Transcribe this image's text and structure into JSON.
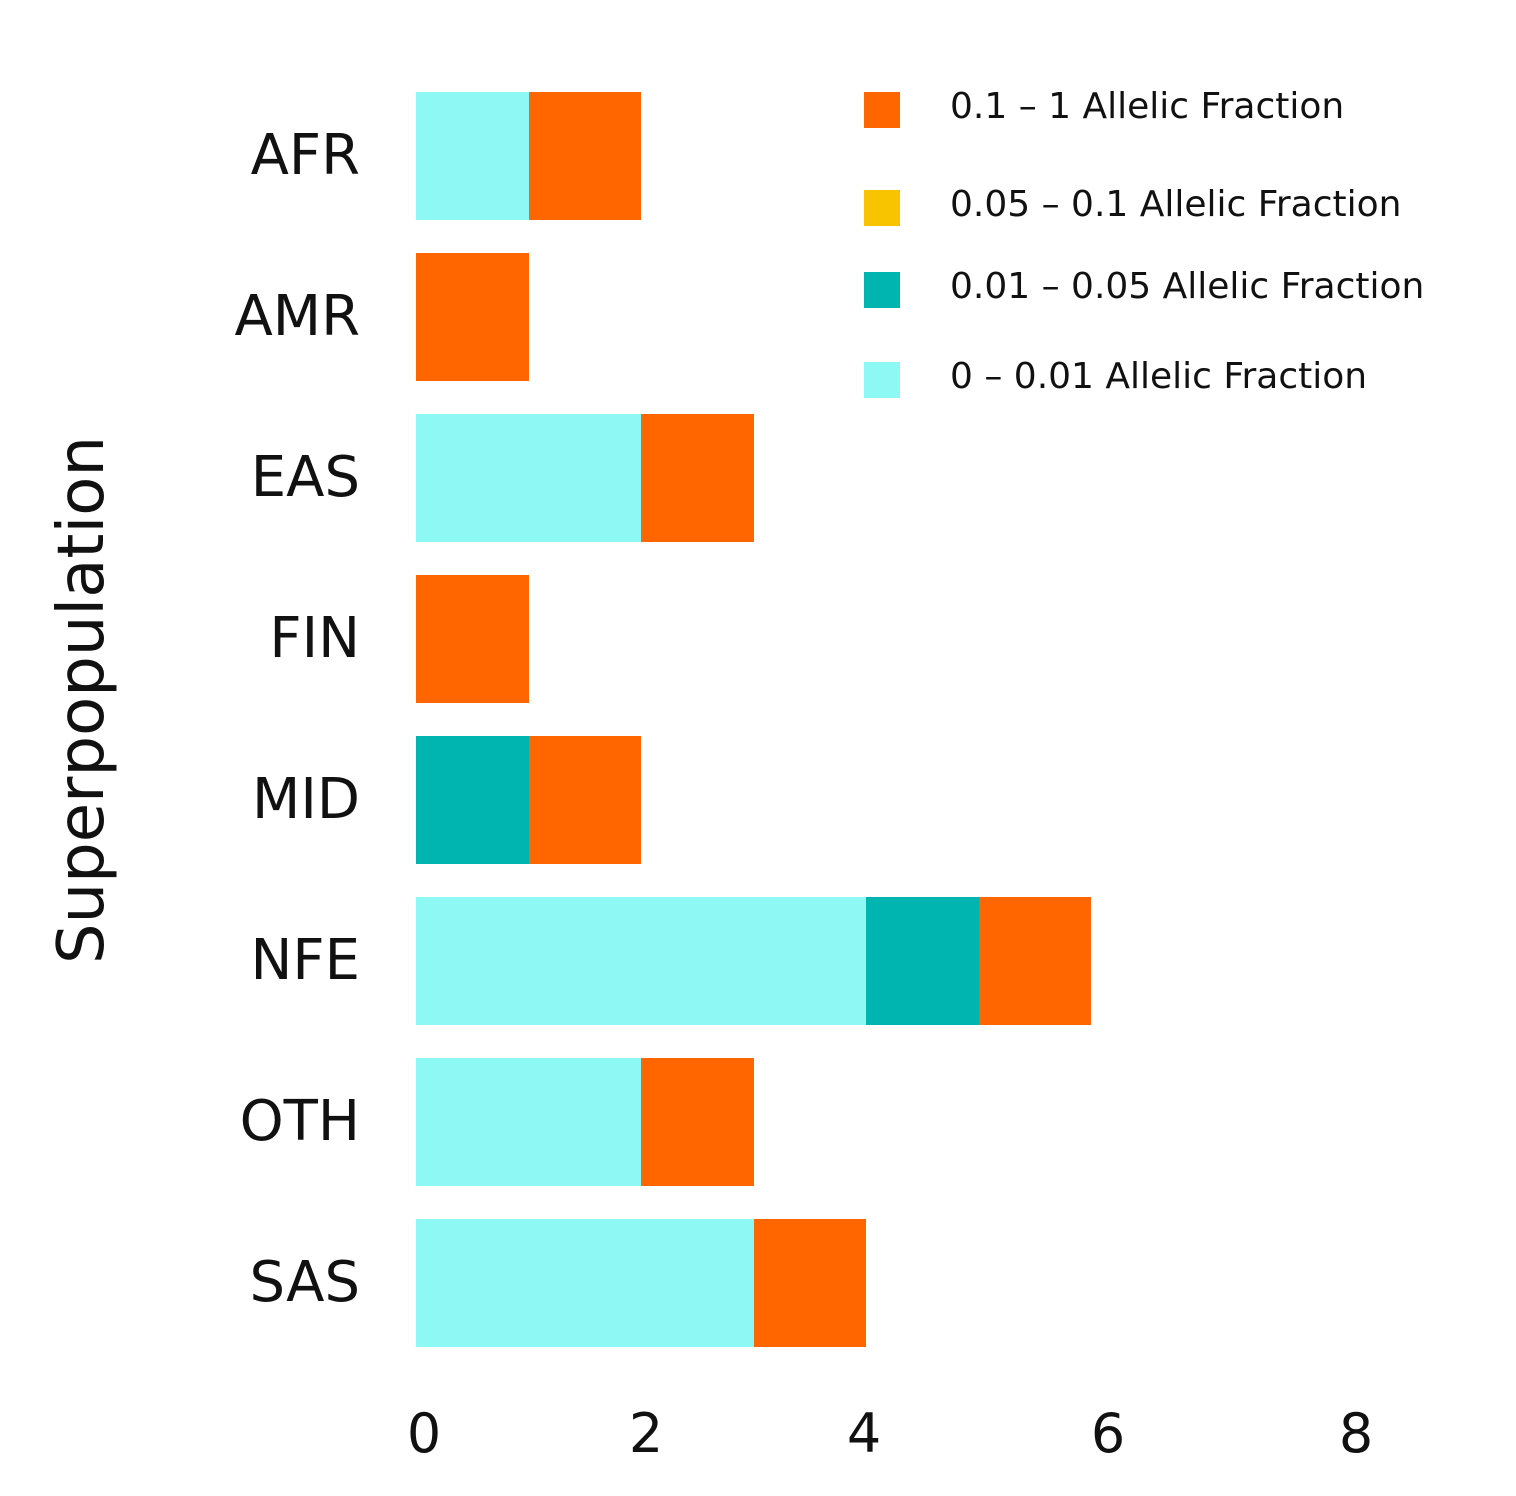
{
  "chart_data": {
    "type": "bar",
    "orientation": "horizontal",
    "stacked": true,
    "title": "",
    "xlabel": "",
    "ylabel": "Superpopulation",
    "categories": [
      "AFR",
      "AMR",
      "EAS",
      "FIN",
      "MID",
      "NFE",
      "OTH",
      "SAS"
    ],
    "series": [
      {
        "name": "0 – 0.01 Allelic Fraction",
        "color": "#8ef8f4",
        "values": [
          1,
          0,
          2,
          0,
          0,
          4,
          2,
          3
        ]
      },
      {
        "name": "0.01 – 0.05 Allelic Fraction",
        "color": "#00b4b0",
        "values": [
          0,
          0,
          0,
          0,
          1,
          1,
          0,
          0
        ]
      },
      {
        "name": "0.05 – 0.1 Allelic Fraction",
        "color": "#f8c400",
        "values": [
          0,
          0,
          0,
          0,
          0,
          0,
          0,
          0
        ]
      },
      {
        "name": "0.1 – 1 Allelic Fraction",
        "color": "#ff6600",
        "values": [
          1,
          1,
          1,
          1,
          1,
          1,
          1,
          1
        ]
      }
    ],
    "xlim": [
      0,
      8
    ],
    "xticks": [
      "0",
      "2",
      "4",
      "6",
      "8"
    ],
    "grid": false,
    "legend_position": "top-right",
    "legend_order": [
      "0.1 – 1 Allelic Fraction",
      "0.05 – 0.1 Allelic Fraction",
      "0.01 – 0.05 Allelic Fraction",
      "0 – 0.01 Allelic Fraction"
    ]
  },
  "axis": {
    "ylabel": "Superpopulation",
    "xticks": [
      "0",
      "2",
      "4",
      "6",
      "8"
    ]
  },
  "legend": [
    {
      "label": "0.1 – 1 Allelic Fraction",
      "color": "#ff6600"
    },
    {
      "label": "0.05 – 0.1 Allelic Fraction",
      "color": "#f8c400"
    },
    {
      "label": "0.01 – 0.05 Allelic Fraction",
      "color": "#00b4b0"
    },
    {
      "label": "0 – 0.01 Allelic Fraction",
      "color": "#8ef8f4"
    }
  ]
}
